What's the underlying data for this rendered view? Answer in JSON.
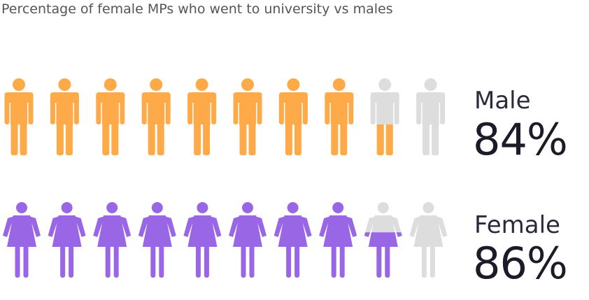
{
  "chart_data": {
    "type": "pictogram",
    "title": "Percentage of female MPs who went to university vs males",
    "icons_per_row": 10,
    "series": [
      {
        "name": "Male",
        "value": 84,
        "value_label": "84%",
        "icon": "male-person-icon",
        "color": "#FFAA48"
      },
      {
        "name": "Female",
        "value": 86,
        "value_label": "86%",
        "icon": "female-person-icon",
        "color": "#9966E6"
      }
    ],
    "empty_color": "#DDDDDD"
  }
}
